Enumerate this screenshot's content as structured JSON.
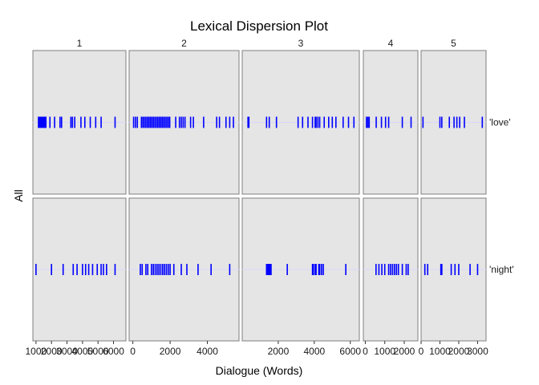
{
  "colors": {
    "panel_bg": "#e5e5e5",
    "panel_border": "#7f7f7f",
    "mark": "#0000ff",
    "guide": "#d6d6ff"
  },
  "chart_data": {
    "type": "lexical-dispersion",
    "title": "Lexical Dispersion Plot",
    "xlabel": "Dialogue (Words)",
    "ylabel": "All",
    "words": [
      "'love'",
      "'night'"
    ],
    "facets": [
      {
        "label": "1",
        "xlim": [
          800,
          6800
        ],
        "ticks": [
          1000,
          2000,
          3000,
          4000,
          5000,
          6000
        ],
        "tick_labels": [
          "1000",
          "2000",
          "3000",
          "4000",
          "5000",
          "6000"
        ],
        "positions": {
          "'love'": [
            1160,
            1200,
            1240,
            1280,
            1320,
            1360,
            1400,
            1440,
            1480,
            1520,
            1560,
            1600,
            1640,
            1900,
            2200,
            2550,
            2650,
            3250,
            3350,
            3500,
            3900,
            4150,
            4500,
            4850,
            5200,
            6100
          ],
          "'night'": [
            1000,
            2000,
            2750,
            3400,
            3650,
            4000,
            4200,
            4400,
            4650,
            4950,
            5200,
            5350,
            5550,
            6100
          ]
        }
      },
      {
        "label": "2",
        "xlim": [
          -200,
          5700
        ],
        "ticks": [
          0,
          2000,
          4000
        ],
        "tick_labels": [
          "0",
          "2000",
          "4000"
        ],
        "positions": {
          "'love'": [
            40,
            140,
            240,
            460,
            540,
            620,
            700,
            780,
            860,
            940,
            1020,
            1100,
            1180,
            1260,
            1340,
            1420,
            1500,
            1580,
            1660,
            1740,
            1820,
            1900,
            1980,
            2300,
            2500,
            2600,
            2700,
            2800,
            3100,
            3250,
            3800,
            4500,
            4650,
            5000,
            5200,
            5400
          ],
          "'night'": [
            400,
            500,
            700,
            800,
            1000,
            1100,
            1200,
            1300,
            1400,
            1500,
            1600,
            1700,
            1800,
            1900,
            2000,
            2200,
            2600,
            2900,
            3500,
            4200,
            5200
          ]
        }
      },
      {
        "label": "3",
        "xlim": [
          0,
          6500
        ],
        "ticks": [
          2000,
          4000,
          6000
        ],
        "tick_labels": [
          "2000",
          "4000",
          "6000"
        ],
        "positions": {
          "'love'": [
            320,
            370,
            1350,
            1500,
            1900,
            3100,
            3350,
            3650,
            3900,
            4050,
            4100,
            4200,
            4300,
            4550,
            4800,
            5000,
            5200,
            5600,
            5900,
            6200
          ],
          "'night'": [
            1350,
            1400,
            1450,
            1500,
            1550,
            1600,
            2500,
            3900,
            3950,
            4050,
            4100,
            4250,
            4300,
            4400,
            4500,
            5750
          ]
        }
      },
      {
        "label": "4",
        "xlim": [
          -100,
          2700
        ],
        "ticks": [
          0,
          1000,
          2000
        ],
        "tick_labels": [
          "0",
          "1000",
          "2000"
        ],
        "positions": {
          "'love'": [
            60,
            130,
            200,
            560,
            830,
            1040,
            1200,
            1900,
            2350
          ],
          "'night'": [
            550,
            700,
            850,
            1000,
            1200,
            1300,
            1400,
            1500,
            1600,
            1700,
            1900,
            2100,
            2200
          ]
        }
      },
      {
        "label": "5",
        "xlim": [
          0,
          3450
        ],
        "ticks": [
          0,
          1000,
          2000,
          3000
        ],
        "tick_labels": [
          "0",
          "1000",
          "2000",
          "3000"
        ],
        "positions": {
          "'love'": [
            100,
            1000,
            1100,
            1500,
            1750,
            1900,
            2050,
            2300,
            3250
          ],
          "'night'": [
            200,
            350,
            1050,
            1100,
            1600,
            1800,
            2000,
            2600,
            3000
          ]
        }
      }
    ]
  }
}
